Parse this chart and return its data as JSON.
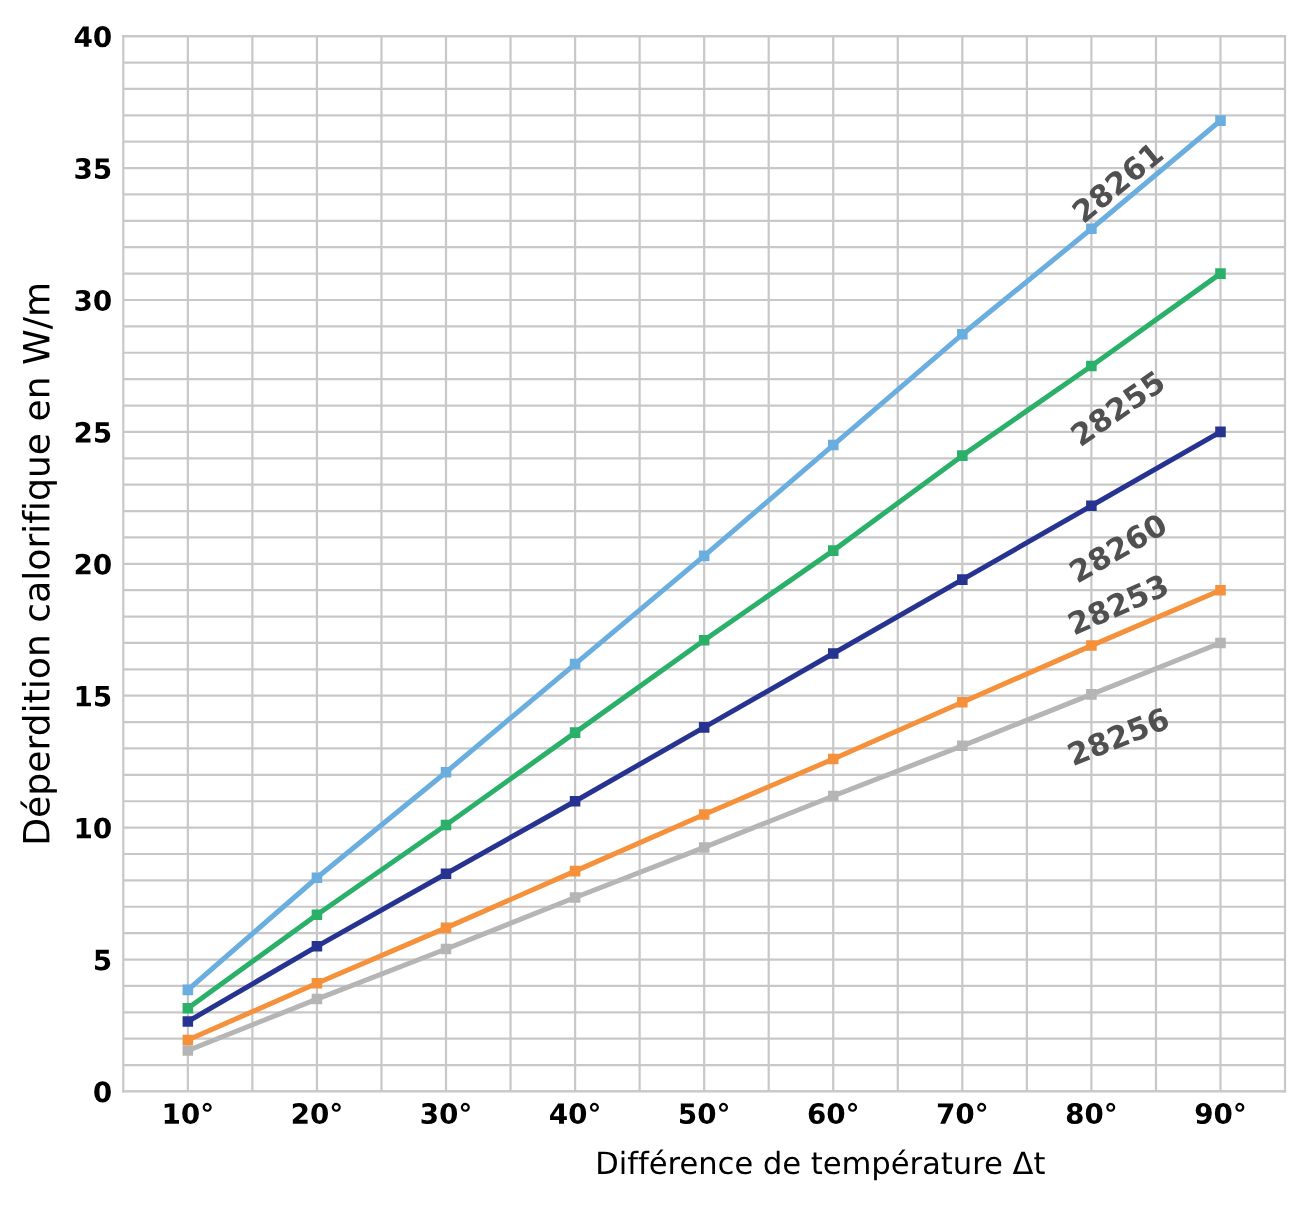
{
  "chart_data": {
    "type": "line",
    "xlabel": "Différence de température Δt",
    "ylabel": "Déperdition calorifique en W/m",
    "x": [
      10,
      20,
      30,
      40,
      50,
      60,
      70,
      80,
      90
    ],
    "series": [
      {
        "name": "28261",
        "color": "#6aaee0",
        "values": [
          3.85,
          8.1,
          12.1,
          16.2,
          20.3,
          24.5,
          28.7,
          32.7,
          36.8
        ]
      },
      {
        "name": "28255",
        "color": "#2bb06a",
        "values": [
          3.15,
          6.7,
          10.1,
          13.6,
          17.1,
          20.5,
          24.1,
          27.5,
          31.0
        ]
      },
      {
        "name": "28260",
        "color": "#263390",
        "values": [
          2.65,
          5.5,
          8.25,
          11.0,
          13.8,
          16.6,
          19.4,
          22.2,
          25.0
        ]
      },
      {
        "name": "28253",
        "color": "#f5913a",
        "values": [
          1.95,
          4.1,
          6.2,
          8.35,
          10.5,
          12.6,
          14.75,
          16.9,
          19.0
        ]
      },
      {
        "name": "28256",
        "color": "#b5b5b5",
        "values": [
          1.55,
          3.5,
          5.4,
          7.35,
          9.25,
          11.2,
          13.1,
          15.05,
          17.0
        ]
      }
    ],
    "xlim": [
      5,
      95
    ],
    "ylim": [
      0,
      40
    ],
    "xticks": [
      {
        "value": 10,
        "label": "10°"
      },
      {
        "value": 15,
        "label": null
      },
      {
        "value": 20,
        "label": "20°"
      },
      {
        "value": 25,
        "label": null
      },
      {
        "value": 30,
        "label": "30°"
      },
      {
        "value": 35,
        "label": null
      },
      {
        "value": 40,
        "label": "40°"
      },
      {
        "value": 45,
        "label": null
      },
      {
        "value": 50,
        "label": "50°"
      },
      {
        "value": 55,
        "label": null
      },
      {
        "value": 60,
        "label": "60°"
      },
      {
        "value": 65,
        "label": null
      },
      {
        "value": 70,
        "label": "70°"
      },
      {
        "value": 75,
        "label": null
      },
      {
        "value": 80,
        "label": "80°"
      },
      {
        "value": 85,
        "label": null
      },
      {
        "value": 90,
        "label": "90°"
      }
    ],
    "yticks": [
      0,
      {
        "value": 1,
        "label": null
      },
      {
        "value": 2,
        "label": null
      },
      {
        "value": 3,
        "label": null
      },
      {
        "value": 4,
        "label": null
      },
      5,
      {
        "value": 6,
        "label": null
      },
      {
        "value": 7,
        "label": null
      },
      {
        "value": 8,
        "label": null
      },
      {
        "value": 9,
        "label": null
      },
      10,
      {
        "value": 11,
        "label": null
      },
      {
        "value": 12,
        "label": null
      },
      {
        "value": 13,
        "label": null
      },
      {
        "value": 14,
        "label": null
      },
      15,
      {
        "value": 16,
        "label": null
      },
      {
        "value": 17,
        "label": null
      },
      {
        "value": 18,
        "label": null
      },
      {
        "value": 19,
        "label": null
      },
      20,
      {
        "value": 21,
        "label": null
      },
      {
        "value": 22,
        "label": null
      },
      {
        "value": 23,
        "label": null
      },
      {
        "value": 24,
        "label": null
      },
      25,
      {
        "value": 26,
        "label": null
      },
      {
        "value": 27,
        "label": null
      },
      {
        "value": 28,
        "label": null
      },
      {
        "value": 29,
        "label": null
      },
      30,
      {
        "value": 31,
        "label": null
      },
      {
        "value": 32,
        "label": null
      },
      {
        "value": 33,
        "label": null
      },
      {
        "value": 34,
        "label": null
      },
      35,
      {
        "value": 36,
        "label": null
      },
      {
        "value": 37,
        "label": null
      },
      {
        "value": 38,
        "label": null
      },
      {
        "value": 39,
        "label": null
      },
      40
    ],
    "grid": true,
    "legend": false,
    "marker": "square",
    "line_style": "solid"
  }
}
